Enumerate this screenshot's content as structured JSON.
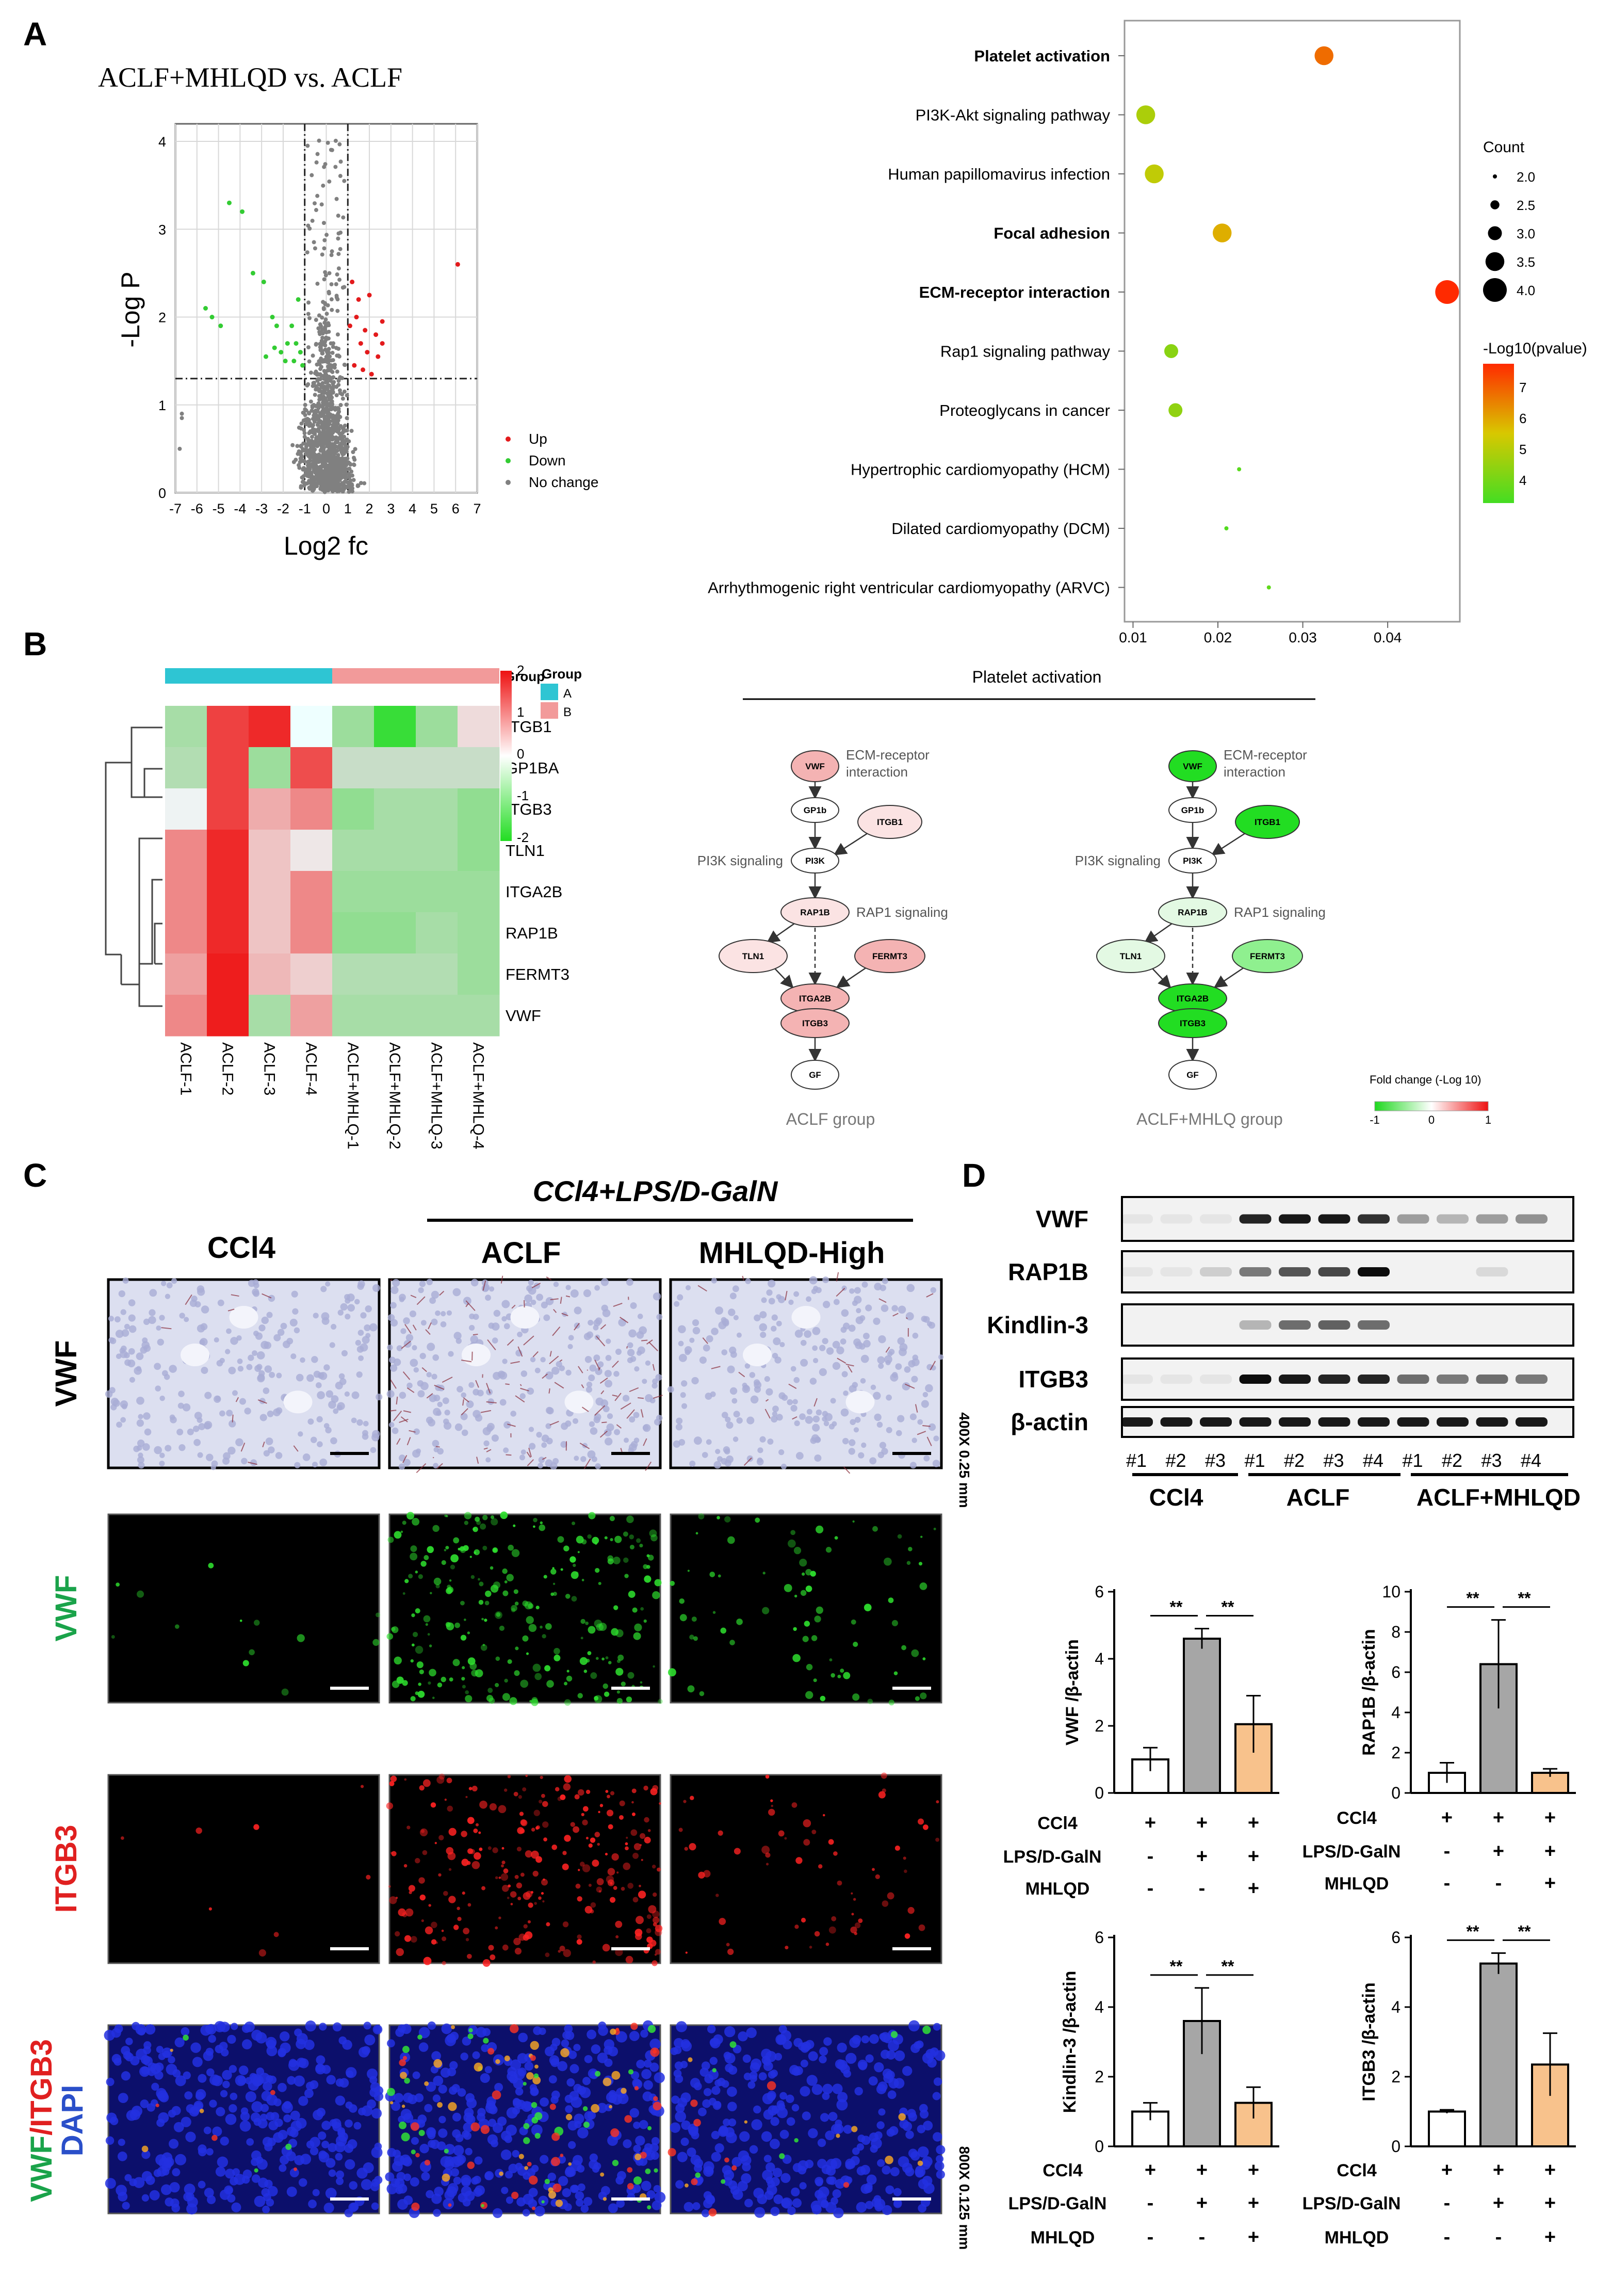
{
  "panels": {
    "A": "A",
    "B": "B",
    "C": "C",
    "D": "D"
  },
  "volcano": {
    "title": "ACLF+MHLQD vs. ACLF",
    "xlabel": "Log2 fc",
    "ylabel": "-Log P",
    "xticks": [
      "-7",
      "-6",
      "-5",
      "-4",
      "-3",
      "-2",
      "-1",
      "0",
      "1",
      "2",
      "3",
      "4",
      "5",
      "6",
      "7"
    ],
    "yticks": [
      "0",
      "1",
      "2",
      "3",
      "4"
    ],
    "legend": [
      {
        "label": "Up",
        "color": "#e31a1c"
      },
      {
        "label": "Down",
        "color": "#33cc33"
      },
      {
        "label": "No change",
        "color": "#808080"
      }
    ]
  },
  "kegg": {
    "pathways": [
      {
        "name": "Platelet activation",
        "x": 0.0325,
        "count": 3.5,
        "p": 6.9,
        "bold": true
      },
      {
        "name": "PI3K-Akt signaling pathway",
        "x": 0.0115,
        "count": 3.5,
        "p": 5.0,
        "bold": false
      },
      {
        "name": "Human papillomavirus infection",
        "x": 0.0125,
        "count": 3.5,
        "p": 5.3,
        "bold": false
      },
      {
        "name": "Focal adhesion",
        "x": 0.0205,
        "count": 3.5,
        "p": 6.0,
        "bold": true
      },
      {
        "name": "ECM-receptor interaction",
        "x": 0.047,
        "count": 4.0,
        "p": 7.8,
        "bold": true
      },
      {
        "name": "Rap1 signaling pathway",
        "x": 0.0145,
        "count": 3.0,
        "p": 4.5,
        "bold": false
      },
      {
        "name": "Proteoglycans in cancer",
        "x": 0.015,
        "count": 3.0,
        "p": 4.6,
        "bold": false
      },
      {
        "name": "Hypertrophic cardiomyopathy (HCM)",
        "x": 0.0225,
        "count": 2.0,
        "p": 3.8,
        "bold": false
      },
      {
        "name": "Dilated cardiomyopathy (DCM)",
        "x": 0.021,
        "count": 2.0,
        "p": 3.7,
        "bold": false
      },
      {
        "name": "Arrhythmogenic right ventricular cardiomyopathy (ARVC)",
        "x": 0.026,
        "count": 2.0,
        "p": 3.9,
        "bold": false
      }
    ],
    "xticks": [
      "0.01",
      "0.02",
      "0.03",
      "0.04"
    ],
    "count_title": "Count",
    "count_levels": [
      "2.0",
      "2.5",
      "3.0",
      "3.5",
      "4.0"
    ],
    "color_title": "-Log10(pvalue)",
    "color_ticks": [
      "7",
      "6",
      "5",
      "4"
    ]
  },
  "heatmap": {
    "genes": [
      "ITGB1",
      "GP1BA",
      "ITGB3",
      "TLN1",
      "ITGA2B",
      "RAP1B",
      "FERMT3",
      "VWF"
    ],
    "samples": [
      "ACLF-1",
      "ACLF-2",
      "ACLF-3",
      "ACLF-4",
      "ACLF+MHLQ-1",
      "ACLF+MHLQ-2",
      "ACLF+MHLQ-3",
      "ACLF+MHLQ-4"
    ],
    "values": [
      [
        -0.8,
        1.6,
        1.8,
        0.0,
        -0.9,
        -1.8,
        -0.9,
        0.3
      ],
      [
        -0.7,
        1.6,
        -0.9,
        1.5,
        -0.5,
        -0.5,
        -0.5,
        -0.5
      ],
      [
        0.1,
        1.6,
        0.7,
        1.0,
        -1.0,
        -0.8,
        -0.8,
        -1.0
      ],
      [
        1.0,
        1.8,
        0.5,
        0.2,
        -0.8,
        -0.8,
        -0.8,
        -1.0
      ],
      [
        1.0,
        1.8,
        0.5,
        1.0,
        -0.9,
        -0.9,
        -0.9,
        -0.9
      ],
      [
        1.0,
        1.8,
        0.5,
        1.0,
        -1.0,
        -1.0,
        -0.8,
        -0.9
      ],
      [
        0.8,
        1.9,
        0.6,
        0.4,
        -0.7,
        -0.7,
        -0.7,
        -0.9
      ],
      [
        1.0,
        1.9,
        -0.8,
        0.8,
        -0.8,
        -0.8,
        -0.8,
        -0.8
      ]
    ],
    "group_title": "Group",
    "groups": [
      {
        "label": "A",
        "color": "#2ec5d3"
      },
      {
        "label": "B",
        "color": "#f29a9a"
      }
    ],
    "scale_ticks": [
      "2",
      "1",
      "0",
      "-1",
      "-2"
    ]
  },
  "pathway": {
    "title": "Platelet activation",
    "left_caption": "ACLF group",
    "right_caption": "ACLF+MHLQ group",
    "labels": {
      "ecm": "ECM-receptor",
      "ecm2": "interaction",
      "pi3k": "PI3K signaling",
      "rap1": "RAP1 signaling"
    },
    "nodes": [
      "VWF",
      "GP1b",
      "ITGB1",
      "PI3K",
      "RAP1B",
      "TLN1",
      "FERMT3",
      "ITGA2B",
      "ITGB3",
      "GF"
    ],
    "fc_title": "Fold change (-Log 10)",
    "fc_ticks": [
      "-1",
      "0",
      "1"
    ]
  },
  "ihc": {
    "top_label": "CCl4+LPS/D-GalN",
    "columns": [
      "CCl4",
      "ACLF",
      "MHLQD-High"
    ],
    "rows": [
      {
        "label": "VWF",
        "color": "#000000"
      },
      {
        "label": "VWF",
        "color": "#1aa34a"
      },
      {
        "label": "ITGB3",
        "color": "#e02020"
      }
    ],
    "merge_label_a": "VWF",
    "merge_label_b": "/ITGB3",
    "merge_label_c": "DAPI",
    "scale_top": "400X  0.25 mm",
    "scale_bottom": "800X  0.125 mm"
  },
  "western": {
    "proteins": [
      "VWF",
      "RAP1B",
      "Kindlin-3",
      "ITGB3",
      "β-actin"
    ],
    "lanes": [
      "#1",
      "#2",
      "#3",
      "#1",
      "#2",
      "#3",
      "#4",
      "#1",
      "#2",
      "#3",
      "#4"
    ],
    "groups": [
      "CCl4",
      "ACLF",
      "ACLF+MHLQD"
    ]
  },
  "bar_charts": [
    {
      "ylabel": "VWF /β-actin",
      "values": [
        1.0,
        4.6,
        2.05
      ],
      "errors": [
        0.35,
        0.3,
        0.85
      ],
      "ylim": [
        0,
        6
      ],
      "yticks": [
        "0",
        "2",
        "4",
        "6"
      ]
    },
    {
      "ylabel": "RAP1B /β-actin",
      "values": [
        1.0,
        6.4,
        1.0
      ],
      "errors": [
        0.5,
        2.2,
        0.2
      ],
      "ylim": [
        0,
        10
      ],
      "yticks": [
        "0",
        "2",
        "4",
        "6",
        "8",
        "10"
      ]
    },
    {
      "ylabel": "Kindlin-3 /β-actin",
      "values": [
        1.0,
        3.6,
        1.25
      ],
      "errors": [
        0.25,
        0.95,
        0.45
      ],
      "ylim": [
        0,
        6
      ],
      "yticks": [
        "0",
        "2",
        "4",
        "6"
      ]
    },
    {
      "ylabel": "ITGB3 /β-actin",
      "values": [
        1.0,
        5.25,
        2.35
      ],
      "errors": [
        0.05,
        0.3,
        0.9
      ],
      "ylim": [
        0,
        6
      ],
      "yticks": [
        "0",
        "2",
        "4",
        "6"
      ]
    }
  ],
  "bar_common": {
    "sig": "**",
    "bar_colors": [
      "#ffffff",
      "#a6a6a6",
      "#f8c28c"
    ],
    "treat_rows": [
      {
        "label": "CCl4",
        "signs": [
          "+",
          "+",
          "+"
        ]
      },
      {
        "label": "LPS/D-GalN",
        "signs": [
          "-",
          "+",
          "+"
        ]
      },
      {
        "label": "MHLQD",
        "signs": [
          "-",
          "-",
          "+"
        ]
      }
    ]
  },
  "chart_data": [
    {
      "type": "scatter",
      "title": "ACLF+MHLQD vs. ACLF",
      "xlabel": "Log2 fc",
      "ylabel": "-Log P",
      "xlim": [
        -7,
        7
      ],
      "ylim": [
        0,
        4.2
      ],
      "legend": "right",
      "series": [
        {
          "name": "Up"
        },
        {
          "name": "Down"
        },
        {
          "name": "No change"
        }
      ]
    },
    {
      "type": "scatter",
      "xlim": [
        0.01,
        0.048
      ],
      "categories": [
        "Platelet activation",
        "PI3K-Akt signaling pathway",
        "Human papillomavirus infection",
        "Focal adhesion",
        "ECM-receptor interaction",
        "Rap1 signaling pathway",
        "Proteoglycans in cancer",
        "Hypertrophic cardiomyopathy (HCM)",
        "Dilated cardiomyopathy (DCM)",
        "Arrhythmogenic right ventricular cardiomyopathy (ARVC)"
      ],
      "x": [
        0.0325,
        0.0115,
        0.0125,
        0.0205,
        0.047,
        0.0145,
        0.015,
        0.0225,
        0.021,
        0.026
      ],
      "size": [
        3.5,
        3.5,
        3.5,
        3.5,
        4.0,
        3.0,
        3.0,
        2.0,
        2.0,
        2.0
      ]
    },
    {
      "type": "heatmap",
      "categories": [
        "ACLF-1",
        "ACLF-2",
        "ACLF-3",
        "ACLF-4",
        "ACLF+MHLQ-1",
        "ACLF+MHLQ-2",
        "ACLF+MHLQ-3",
        "ACLF+MHLQ-4"
      ],
      "rows": [
        "ITGB1",
        "GP1BA",
        "ITGB3",
        "TLN1",
        "ITGA2B",
        "RAP1B",
        "FERMT3",
        "VWF"
      ]
    },
    {
      "type": "bar",
      "categories": [
        "CCl4",
        "ACLF",
        "ACLF+MHLQD"
      ],
      "ylabel": "VWF /β-actin",
      "values": [
        1.0,
        4.6,
        2.05
      ],
      "ylim": [
        0,
        6
      ]
    },
    {
      "type": "bar",
      "categories": [
        "CCl4",
        "ACLF",
        "ACLF+MHLQD"
      ],
      "ylabel": "RAP1B /β-actin",
      "values": [
        1.0,
        6.4,
        1.0
      ],
      "ylim": [
        0,
        10
      ]
    },
    {
      "type": "bar",
      "categories": [
        "CCl4",
        "ACLF",
        "ACLF+MHLQD"
      ],
      "ylabel": "Kindlin-3 /β-actin",
      "values": [
        1.0,
        3.6,
        1.25
      ],
      "ylim": [
        0,
        6
      ]
    },
    {
      "type": "bar",
      "categories": [
        "CCl4",
        "ACLF",
        "ACLF+MHLQD"
      ],
      "ylabel": "ITGB3 /β-actin",
      "values": [
        1.0,
        5.25,
        2.35
      ],
      "ylim": [
        0,
        6
      ]
    }
  ]
}
